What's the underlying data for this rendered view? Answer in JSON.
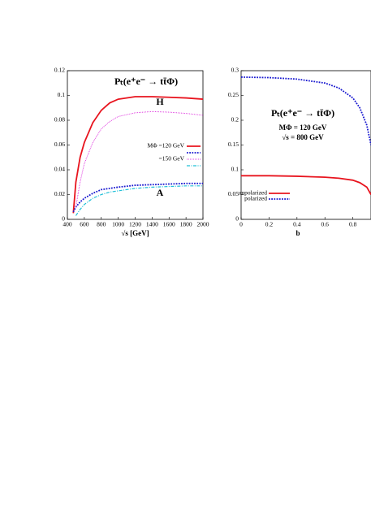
{
  "chart_data": [
    {
      "type": "line",
      "title": "Pₜ(e⁺e⁻ → tt̄Φ)",
      "x_label": "√s [GeV]",
      "annotations": [
        "H",
        "A"
      ],
      "x": [
        470,
        500,
        550,
        600,
        700,
        800,
        900,
        1000,
        1200,
        1400,
        1600,
        1800,
        2000
      ],
      "series": [
        {
          "name": "MΦ =120 GeV",
          "color": "#e8141e",
          "dash": "solid",
          "values": [
            0.005,
            0.03,
            0.05,
            0.062,
            0.078,
            0.088,
            0.094,
            0.097,
            0.099,
            0.099,
            0.0985,
            0.098,
            0.097
          ]
        },
        {
          "color": "#1a1ad0",
          "dash": "dotted",
          "values": [
            0.006,
            0.01,
            0.014,
            0.017,
            0.021,
            0.024,
            0.025,
            0.026,
            0.0275,
            0.028,
            0.0285,
            0.029,
            0.029
          ]
        },
        {
          "name": "=150 GeV",
          "color": "#e040e0",
          "dash": "fine",
          "values": [
            null,
            0.01,
            0.03,
            0.045,
            0.062,
            0.073,
            0.079,
            0.083,
            0.086,
            0.087,
            0.0865,
            0.0855,
            0.084
          ]
        },
        {
          "color": "#20c0d8",
          "dash": "dashdot",
          "values": [
            null,
            0.003,
            0.008,
            0.012,
            0.017,
            0.02,
            0.022,
            0.023,
            0.025,
            0.026,
            0.0265,
            0.027,
            0.027
          ]
        }
      ],
      "xlim": [
        400,
        2000
      ],
      "xticks": [
        400,
        600,
        800,
        1000,
        1200,
        1400,
        1600,
        1800,
        2000
      ],
      "ylim": [
        0,
        0.12
      ],
      "yticks": [
        0,
        0.02,
        0.04,
        0.06,
        0.08,
        0.1,
        0.12
      ]
    },
    {
      "type": "line",
      "title": "Pₜ(e⁺e⁻ → tt̄Φ)",
      "x_label": "b",
      "annotations": [
        "MΦ = 120 GeV",
        "√s = 800 GeV"
      ],
      "x": [
        0,
        0.2,
        0.4,
        0.6,
        0.7,
        0.8,
        0.85,
        0.9,
        0.93
      ],
      "series": [
        {
          "name": "unpolarized",
          "color": "#e8141e",
          "dash": "solid",
          "values": [
            0.088,
            0.088,
            0.087,
            0.085,
            0.083,
            0.079,
            0.074,
            0.065,
            0.05
          ]
        },
        {
          "name": "polarized",
          "color": "#1a1ad0",
          "dash": "dotted",
          "values": [
            0.287,
            0.286,
            0.283,
            0.275,
            0.265,
            0.245,
            0.225,
            0.19,
            0.15
          ]
        }
      ],
      "xlim": [
        0,
        0.93
      ],
      "xticks": [
        0,
        0.2,
        0.4,
        0.6,
        0.8
      ],
      "ylim": [
        0,
        0.3
      ],
      "yticks": [
        0,
        0.05,
        0.1,
        0.15,
        0.2,
        0.25,
        0.3
      ]
    }
  ]
}
